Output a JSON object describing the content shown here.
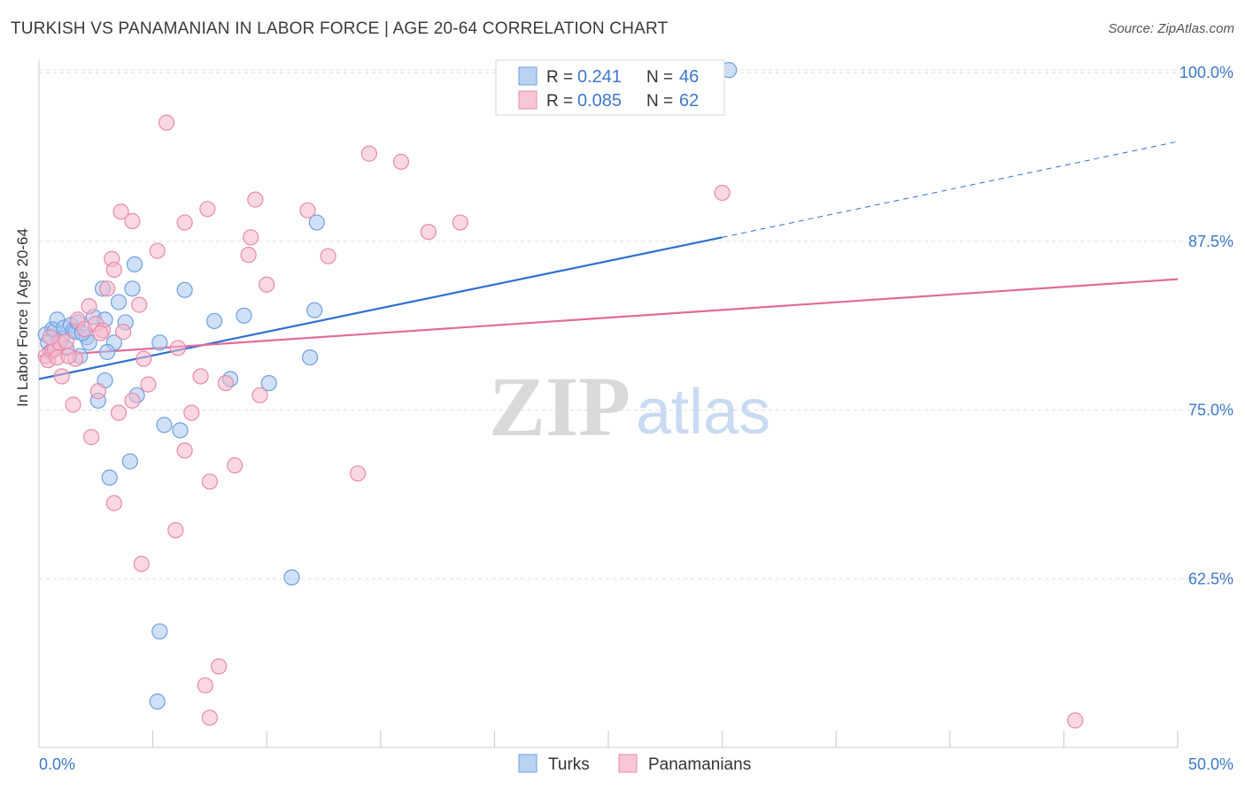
{
  "header": {
    "title": "TURKISH VS PANAMANIAN IN LABOR FORCE | AGE 20-64 CORRELATION CHART",
    "source": "Source: ZipAtlas.com"
  },
  "watermark": {
    "zip": "ZIP",
    "atlas": "atlas"
  },
  "colors": {
    "turks_fill": "#a9c8f0",
    "turks_stroke": "#6f9ee0",
    "turks_line": "#2f6fd0",
    "pan_fill": "#f6b8cb",
    "pan_stroke": "#e98aaa",
    "pan_line": "#e26b98",
    "tick_label": "#3d78c9",
    "grid": "#dddddd"
  },
  "legend_stats": [
    {
      "r_label": "R =",
      "r_value": "0.241",
      "n_label": "N =",
      "n_value": "46"
    },
    {
      "r_label": "R =",
      "r_value": "0.085",
      "n_label": "N =",
      "n_value": "62"
    }
  ],
  "chart_data": {
    "type": "scatter",
    "title": "TURKISH VS PANAMANIAN IN LABOR FORCE | AGE 20-64 CORRELATION CHART",
    "xlabel": "",
    "ylabel": "In Labor Force | Age 20-64",
    "xlim": [
      0,
      50
    ],
    "ylim": [
      50,
      100.8
    ],
    "x_tick_labels": [
      "0.0%",
      "50.0%"
    ],
    "y_ticks": [
      62.5,
      75.0,
      87.5,
      100.0
    ],
    "y_tick_labels": [
      "62.5%",
      "75.0%",
      "87.5%",
      "100.0%"
    ],
    "grid": true,
    "legend_position": "bottom",
    "series": [
      {
        "name": "Turks",
        "trend": {
          "x0": 0,
          "y0": 77.3,
          "x1": 30,
          "y1": 87.8,
          "dashed_to_x": 50,
          "dashed_to_y": 94.9
        },
        "points": [
          [
            0.3,
            80.6
          ],
          [
            0.4,
            80.0
          ],
          [
            0.5,
            79.3
          ],
          [
            0.6,
            81.0
          ],
          [
            0.7,
            80.9
          ],
          [
            0.8,
            81.7
          ],
          [
            1.0,
            80.3
          ],
          [
            1.1,
            81.1
          ],
          [
            1.2,
            79.6
          ],
          [
            1.4,
            81.3
          ],
          [
            1.5,
            80.9
          ],
          [
            1.6,
            80.8
          ],
          [
            1.7,
            81.5
          ],
          [
            1.8,
            79.0
          ],
          [
            2.1,
            80.4
          ],
          [
            2.2,
            80.0
          ],
          [
            2.4,
            81.9
          ],
          [
            2.8,
            84.0
          ],
          [
            2.9,
            77.2
          ],
          [
            3.1,
            70.0
          ],
          [
            3.3,
            80.0
          ],
          [
            3.8,
            81.5
          ],
          [
            4.2,
            85.8
          ],
          [
            4.3,
            76.1
          ],
          [
            5.3,
            80.0
          ],
          [
            5.5,
            73.9
          ],
          [
            6.2,
            73.5
          ],
          [
            6.4,
            83.9
          ],
          [
            7.7,
            81.6
          ],
          [
            8.4,
            77.3
          ],
          [
            9.0,
            82.0
          ],
          [
            10.1,
            77.0
          ],
          [
            11.1,
            62.6
          ],
          [
            11.9,
            78.9
          ],
          [
            12.1,
            82.4
          ],
          [
            12.2,
            88.9
          ],
          [
            30.3,
            100.2
          ],
          [
            3.5,
            83.0
          ],
          [
            4.1,
            84.0
          ],
          [
            2.6,
            75.7
          ],
          [
            4.0,
            71.2
          ],
          [
            5.3,
            58.6
          ],
          [
            5.2,
            53.4
          ],
          [
            2.9,
            81.7
          ],
          [
            3.0,
            79.3
          ],
          [
            1.9,
            80.7
          ]
        ]
      },
      {
        "name": "Panamanians",
        "trend": {
          "x0": 0,
          "y0": 79.0,
          "x1": 50,
          "y1": 84.7
        },
        "points": [
          [
            0.3,
            79.0
          ],
          [
            0.4,
            78.7
          ],
          [
            0.6,
            79.4
          ],
          [
            0.7,
            79.5
          ],
          [
            0.8,
            78.9
          ],
          [
            0.9,
            80.0
          ],
          [
            1.0,
            77.5
          ],
          [
            1.2,
            80.1
          ],
          [
            1.5,
            75.4
          ],
          [
            1.6,
            78.8
          ],
          [
            1.7,
            81.7
          ],
          [
            2.0,
            81.0
          ],
          [
            2.3,
            73.0
          ],
          [
            2.5,
            81.4
          ],
          [
            2.6,
            76.4
          ],
          [
            2.8,
            80.9
          ],
          [
            3.2,
            86.2
          ],
          [
            3.3,
            85.4
          ],
          [
            3.5,
            74.8
          ],
          [
            3.6,
            89.7
          ],
          [
            3.7,
            80.8
          ],
          [
            4.1,
            75.7
          ],
          [
            4.4,
            82.8
          ],
          [
            4.6,
            78.8
          ],
          [
            4.8,
            76.9
          ],
          [
            5.2,
            86.8
          ],
          [
            5.6,
            96.3
          ],
          [
            6.0,
            66.1
          ],
          [
            6.1,
            79.6
          ],
          [
            6.4,
            88.9
          ],
          [
            6.7,
            74.8
          ],
          [
            7.1,
            77.5
          ],
          [
            7.4,
            89.9
          ],
          [
            7.5,
            69.7
          ],
          [
            7.9,
            56.0
          ],
          [
            8.2,
            77.0
          ],
          [
            8.6,
            70.9
          ],
          [
            9.2,
            86.5
          ],
          [
            9.3,
            87.8
          ],
          [
            9.5,
            90.6
          ],
          [
            9.7,
            76.1
          ],
          [
            10.0,
            84.3
          ],
          [
            11.8,
            89.8
          ],
          [
            12.7,
            86.4
          ],
          [
            14.0,
            70.3
          ],
          [
            14.5,
            94.0
          ],
          [
            15.9,
            93.4
          ],
          [
            17.1,
            88.2
          ],
          [
            18.5,
            88.9
          ],
          [
            30.0,
            91.1
          ],
          [
            45.5,
            52.0
          ],
          [
            4.1,
            89.0
          ],
          [
            3.0,
            84.0
          ],
          [
            2.2,
            82.7
          ],
          [
            7.3,
            54.6
          ],
          [
            7.5,
            52.2
          ],
          [
            4.5,
            63.6
          ],
          [
            3.3,
            68.1
          ],
          [
            6.4,
            72.0
          ],
          [
            1.3,
            79.0
          ],
          [
            0.5,
            80.4
          ],
          [
            2.7,
            80.7
          ]
        ]
      }
    ]
  }
}
